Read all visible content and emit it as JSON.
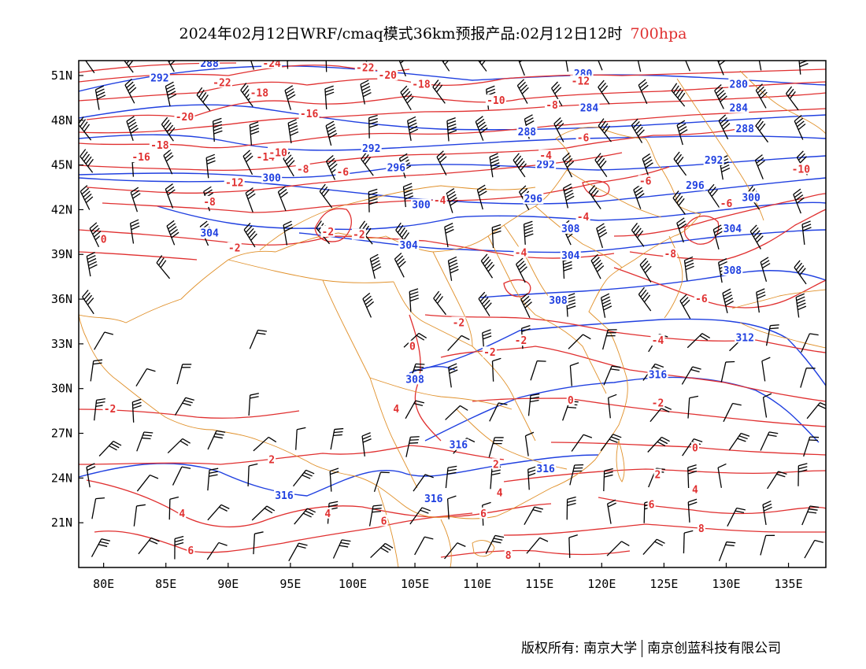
{
  "title": {
    "main": "2024年02月12日WRF/cmaq模式36km预报产品:02月12日12时",
    "level": "700hpa",
    "level_color": "#e03030"
  },
  "axes": {
    "lon_range": [
      78,
      138
    ],
    "lat_range": [
      18,
      52
    ],
    "x_ticks": [
      {
        "lon": 80,
        "label": "80E"
      },
      {
        "lon": 85,
        "label": "85E"
      },
      {
        "lon": 90,
        "label": "90E"
      },
      {
        "lon": 95,
        "label": "95E"
      },
      {
        "lon": 100,
        "label": "100E"
      },
      {
        "lon": 105,
        "label": "105E"
      },
      {
        "lon": 110,
        "label": "110E"
      },
      {
        "lon": 115,
        "label": "115E"
      },
      {
        "lon": 120,
        "label": "120E"
      },
      {
        "lon": 125,
        "label": "125E"
      },
      {
        "lon": 130,
        "label": "130E"
      },
      {
        "lon": 135,
        "label": "135E"
      }
    ],
    "y_ticks": [
      {
        "lat": 51,
        "label": "51N"
      },
      {
        "lat": 48,
        "label": "48N"
      },
      {
        "lat": 45,
        "label": "45N"
      },
      {
        "lat": 42,
        "label": "42N"
      },
      {
        "lat": 39,
        "label": "39N"
      },
      {
        "lat": 36,
        "label": "36N"
      },
      {
        "lat": 33,
        "label": "33N"
      },
      {
        "lat": 30,
        "label": "30N"
      },
      {
        "lat": 27,
        "label": "27N"
      },
      {
        "lat": 24,
        "label": "24N"
      },
      {
        "lat": 21,
        "label": "21N"
      }
    ]
  },
  "colors": {
    "geopotential": "#2040e0",
    "temperature": "#e03030",
    "boundaries": "#e0902a",
    "wind": "#000000",
    "frame": "#000000"
  },
  "geopotential_labels": [
    {
      "text": "288",
      "lon": 88.5,
      "lat": 51.8
    },
    {
      "text": "292",
      "lon": 84.5,
      "lat": 50.8
    },
    {
      "text": "280",
      "lon": 118.5,
      "lat": 51.1
    },
    {
      "text": "280",
      "lon": 131,
      "lat": 50.4
    },
    {
      "text": "284",
      "lon": 119,
      "lat": 48.8
    },
    {
      "text": "284",
      "lon": 131,
      "lat": 48.8
    },
    {
      "text": "288",
      "lon": 114,
      "lat": 47.2
    },
    {
      "text": "288",
      "lon": 131.5,
      "lat": 47.4
    },
    {
      "text": "292",
      "lon": 101.5,
      "lat": 46.1
    },
    {
      "text": "292",
      "lon": 115.5,
      "lat": 45.0
    },
    {
      "text": "292",
      "lon": 129,
      "lat": 45.3
    },
    {
      "text": "296",
      "lon": 103.5,
      "lat": 44.8
    },
    {
      "text": "296",
      "lon": 127.5,
      "lat": 43.6
    },
    {
      "text": "300",
      "lon": 93.5,
      "lat": 44.1
    },
    {
      "text": "300",
      "lon": 105.5,
      "lat": 42.3
    },
    {
      "text": "296",
      "lon": 114.5,
      "lat": 42.7
    },
    {
      "text": "300",
      "lon": 132,
      "lat": 42.8
    },
    {
      "text": "304",
      "lon": 88.5,
      "lat": 40.4
    },
    {
      "text": "304",
      "lon": 104.5,
      "lat": 39.6
    },
    {
      "text": "308",
      "lon": 117.5,
      "lat": 40.7
    },
    {
      "text": "304",
      "lon": 130.5,
      "lat": 40.7
    },
    {
      "text": "304",
      "lon": 117.5,
      "lat": 38.9
    },
    {
      "text": "308",
      "lon": 130.5,
      "lat": 37.9
    },
    {
      "text": "308",
      "lon": 116.5,
      "lat": 35.9
    },
    {
      "text": "312",
      "lon": 131.5,
      "lat": 33.4
    },
    {
      "text": "308",
      "lon": 105,
      "lat": 30.6
    },
    {
      "text": "316",
      "lon": 124.5,
      "lat": 30.9
    },
    {
      "text": "316",
      "lon": 108.5,
      "lat": 26.2
    },
    {
      "text": "316",
      "lon": 115.5,
      "lat": 24.6
    },
    {
      "text": "316",
      "lon": 94.5,
      "lat": 22.8
    },
    {
      "text": "316",
      "lon": 106.5,
      "lat": 22.6
    }
  ],
  "temperature_labels": [
    {
      "text": "-24",
      "lon": 93.5,
      "lat": 51.8
    },
    {
      "text": "-22",
      "lon": 101,
      "lat": 51.5
    },
    {
      "text": "-20",
      "lon": 102.8,
      "lat": 51.0
    },
    {
      "text": "-18",
      "lon": 105.5,
      "lat": 50.4
    },
    {
      "text": "-12",
      "lon": 118.3,
      "lat": 50.6
    },
    {
      "text": "-22",
      "lon": 89.5,
      "lat": 50.5
    },
    {
      "text": "-18",
      "lon": 92.5,
      "lat": 49.8
    },
    {
      "text": "-10",
      "lon": 111.5,
      "lat": 49.3
    },
    {
      "text": "-8",
      "lon": 116,
      "lat": 49.0
    },
    {
      "text": "-20",
      "lon": 86.5,
      "lat": 48.2
    },
    {
      "text": "-16",
      "lon": 96.5,
      "lat": 48.4
    },
    {
      "text": "-6",
      "lon": 118.5,
      "lat": 46.8
    },
    {
      "text": "-18",
      "lon": 84.5,
      "lat": 46.3
    },
    {
      "text": "-16",
      "lon": 83,
      "lat": 45.5
    },
    {
      "text": "-14",
      "lon": 93,
      "lat": 45.5
    },
    {
      "text": "-10",
      "lon": 94,
      "lat": 45.8
    },
    {
      "text": "-8",
      "lon": 96,
      "lat": 44.7
    },
    {
      "text": "-6",
      "lon": 99.2,
      "lat": 44.5
    },
    {
      "text": "-4",
      "lon": 115.5,
      "lat": 45.6
    },
    {
      "text": "-10",
      "lon": 136,
      "lat": 44.7
    },
    {
      "text": "-12",
      "lon": 90.5,
      "lat": 43.8
    },
    {
      "text": "-6",
      "lon": 123.5,
      "lat": 43.9
    },
    {
      "text": "-8",
      "lon": 88.5,
      "lat": 42.5
    },
    {
      "text": "-4",
      "lon": 107,
      "lat": 42.6
    },
    {
      "text": "-6",
      "lon": 130,
      "lat": 42.4
    },
    {
      "text": "-4",
      "lon": 118.5,
      "lat": 41.5
    },
    {
      "text": "-2",
      "lon": 98,
      "lat": 40.5
    },
    {
      "text": "-2",
      "lon": 100.5,
      "lat": 40.3
    },
    {
      "text": "0",
      "lon": 80,
      "lat": 40.0
    },
    {
      "text": "-2",
      "lon": 90.5,
      "lat": 39.4
    },
    {
      "text": "-4",
      "lon": 113.5,
      "lat": 39.1
    },
    {
      "text": "-8",
      "lon": 125.5,
      "lat": 39.0
    },
    {
      "text": "-6",
      "lon": 128,
      "lat": 36.0
    },
    {
      "text": "-2",
      "lon": 108.5,
      "lat": 34.4
    },
    {
      "text": "-4",
      "lon": 124.5,
      "lat": 33.2
    },
    {
      "text": "-2",
      "lon": 111,
      "lat": 32.4
    },
    {
      "text": "-2",
      "lon": 113.5,
      "lat": 33.2
    },
    {
      "text": "0",
      "lon": 104.8,
      "lat": 32.8
    },
    {
      "text": "-2",
      "lon": 80.5,
      "lat": 28.6
    },
    {
      "text": "0",
      "lon": 117.5,
      "lat": 29.2
    },
    {
      "text": "-2",
      "lon": 124.5,
      "lat": 29.0
    },
    {
      "text": "4",
      "lon": 103.5,
      "lat": 28.6
    },
    {
      "text": "2",
      "lon": 93.5,
      "lat": 25.2
    },
    {
      "text": "0",
      "lon": 127.5,
      "lat": 26.0
    },
    {
      "text": "2",
      "lon": 111.5,
      "lat": 24.9
    },
    {
      "text": "2",
      "lon": 124.5,
      "lat": 24.2
    },
    {
      "text": "4",
      "lon": 111.8,
      "lat": 23.0
    },
    {
      "text": "4",
      "lon": 127.5,
      "lat": 23.2
    },
    {
      "text": "4",
      "lon": 86.3,
      "lat": 21.6
    },
    {
      "text": "4",
      "lon": 98,
      "lat": 21.6
    },
    {
      "text": "6",
      "lon": 102.5,
      "lat": 21.1
    },
    {
      "text": "6",
      "lon": 110.5,
      "lat": 21.6
    },
    {
      "text": "6",
      "lon": 124,
      "lat": 22.2
    },
    {
      "text": "6",
      "lon": 87,
      "lat": 19.1
    },
    {
      "text": "8",
      "lon": 128,
      "lat": 20.6
    },
    {
      "text": "8",
      "lon": 112.5,
      "lat": 18.8
    }
  ],
  "footer": {
    "left": "版权所有: 南京大学",
    "right": "南京创蓝科技有限公司"
  }
}
